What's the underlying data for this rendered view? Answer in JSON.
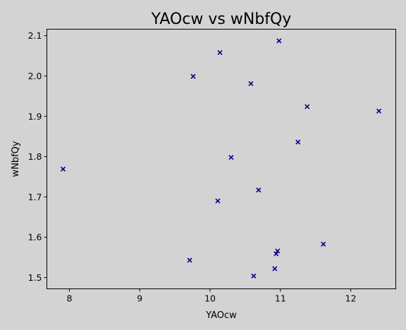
{
  "chart_data": {
    "type": "scatter",
    "title": "YAOcw vs wNbfQy",
    "xlabel": "YAOcw",
    "ylabel": "wNbfQy",
    "xlim": [
      7.68,
      12.64
    ],
    "ylim": [
      1.472,
      2.116
    ],
    "xticks": [
      8,
      9,
      10,
      11,
      12
    ],
    "yticks": [
      1.5,
      1.6,
      1.7,
      1.8,
      1.9,
      2.0,
      2.1
    ],
    "xtick_labels": [
      "8",
      "9",
      "10",
      "11",
      "12"
    ],
    "ytick_labels": [
      "1.5",
      "1.6",
      "1.7",
      "1.8",
      "1.9",
      "2.0",
      "2.1"
    ],
    "marker": "x",
    "marker_color": "#00008b",
    "grid": false,
    "points": [
      {
        "x": 7.91,
        "y": 1.769
      },
      {
        "x": 9.71,
        "y": 1.543
      },
      {
        "x": 9.76,
        "y": 1.999
      },
      {
        "x": 10.11,
        "y": 1.69
      },
      {
        "x": 10.14,
        "y": 2.058
      },
      {
        "x": 10.3,
        "y": 1.798
      },
      {
        "x": 10.58,
        "y": 1.981
      },
      {
        "x": 10.62,
        "y": 1.504
      },
      {
        "x": 10.69,
        "y": 1.717
      },
      {
        "x": 10.92,
        "y": 1.522
      },
      {
        "x": 10.94,
        "y": 1.559
      },
      {
        "x": 10.96,
        "y": 1.566
      },
      {
        "x": 10.98,
        "y": 2.087
      },
      {
        "x": 11.25,
        "y": 1.836
      },
      {
        "x": 11.38,
        "y": 1.924
      },
      {
        "x": 11.61,
        "y": 1.583
      },
      {
        "x": 12.4,
        "y": 1.913
      }
    ]
  }
}
